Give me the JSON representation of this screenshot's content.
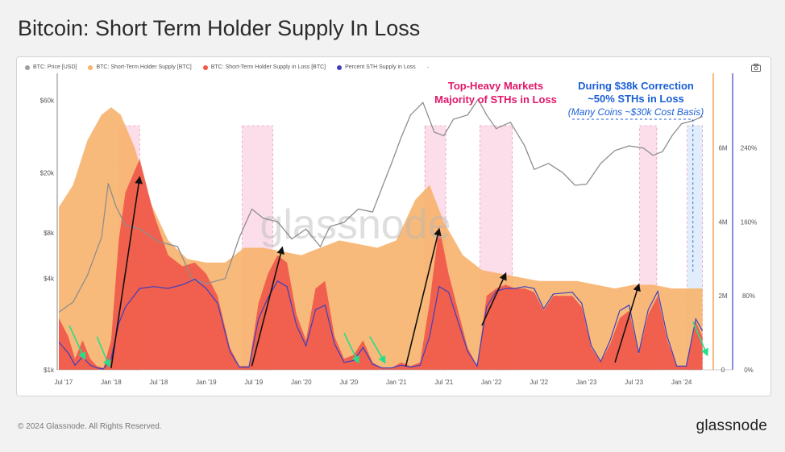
{
  "page": {
    "title": "Bitcoin: Short Term Holder Supply In Loss",
    "footer": "© 2024 Glassnode. All Rights Reserved.",
    "brand": "glassnode",
    "watermark": "glassnode"
  },
  "legend": {
    "items": [
      {
        "label": "BTC: Price [USD]",
        "color": "#9e9e9e"
      },
      {
        "label": "BTC: Short-Term Holder Supply [BTC]",
        "color": "#f7b36b"
      },
      {
        "label": "BTC: Short-Term Holder Supply in Loss [BTC]",
        "color": "#f0584a"
      },
      {
        "label": "Percent STH Supply in Loss",
        "color": "#3f3fbf"
      }
    ],
    "more": "-"
  },
  "annotations": {
    "topheavy_line1": "Top-Heavy Markets",
    "topheavy_line2": "Majority of STHs in Loss",
    "correction_line1": "During $38k Correction",
    "correction_line2": "~50% STHs in Loss",
    "correction_line3": "(Many Coins ~$30k Cost Basis)",
    "colors": {
      "pink": "#e0176a",
      "blue": "#1a5fd6"
    }
  },
  "chart_data": {
    "type": "area",
    "x_ticks": [
      "Jul '17",
      "Jan '18",
      "Jul '18",
      "Jan '19",
      "Jul '19",
      "Jan '20",
      "Jul '20",
      "Jan '21",
      "Jul '21",
      "Jan '22",
      "Jul '22",
      "Jan '23",
      "Jul '23",
      "Jan '24"
    ],
    "price_axis": {
      "scale": "log",
      "ticks": [
        "$1k",
        "$4k",
        "$8k",
        "$20k",
        "$60k"
      ],
      "tick_values": [
        1000,
        4000,
        8000,
        20000,
        60000
      ],
      "range": [
        1000,
        80000
      ]
    },
    "supply_axis": {
      "ticks": [
        "0",
        "2M",
        "4M",
        "6M"
      ],
      "tick_values": [
        0,
        2,
        4,
        6
      ],
      "range": [
        0,
        7.8
      ],
      "unit": "M BTC"
    },
    "percent_axis": {
      "ticks": [
        "0%",
        "80%",
        "160%",
        "240%"
      ],
      "tick_values": [
        0,
        80,
        160,
        240
      ],
      "range": [
        0,
        312
      ]
    },
    "x_range": [
      2017.45,
      2024.3
    ],
    "series": [
      {
        "name": "BTC: Price [USD]",
        "color": "#9e9e9e",
        "x": [
          2017.45,
          2017.6,
          2017.75,
          2017.9,
          2017.97,
          2018.05,
          2018.15,
          2018.3,
          2018.5,
          2018.7,
          2018.85,
          2019.0,
          2019.2,
          2019.35,
          2019.48,
          2019.6,
          2019.75,
          2019.9,
          2020.05,
          2020.2,
          2020.3,
          2020.45,
          2020.6,
          2020.75,
          2020.85,
          2020.95,
          2021.05,
          2021.15,
          2021.28,
          2021.4,
          2021.5,
          2021.6,
          2021.75,
          2021.86,
          2021.95,
          2022.05,
          2022.2,
          2022.35,
          2022.45,
          2022.6,
          2022.75,
          2022.88,
          2023.0,
          2023.15,
          2023.3,
          2023.45,
          2023.6,
          2023.7,
          2023.8,
          2023.9,
          2024.0,
          2024.12,
          2024.22
        ],
        "values": [
          2400,
          2800,
          4200,
          7500,
          17000,
          12000,
          9000,
          8500,
          7000,
          6500,
          4000,
          3700,
          4000,
          7500,
          11500,
          10000,
          9500,
          7300,
          8500,
          6500,
          8800,
          9400,
          11500,
          11000,
          16000,
          23000,
          34000,
          48000,
          58000,
          37000,
          35000,
          45000,
          48000,
          61000,
          48000,
          39000,
          43000,
          30000,
          21000,
          23000,
          20000,
          16500,
          16800,
          23000,
          28000,
          30000,
          29000,
          26000,
          27500,
          35000,
          42000,
          44000,
          47000
        ]
      },
      {
        "name": "BTC: Short-Term Holder Supply [BTC]",
        "color": "#f7b36b",
        "x": [
          2017.45,
          2017.6,
          2017.75,
          2017.9,
          2018.0,
          2018.1,
          2018.25,
          2018.4,
          2018.6,
          2018.8,
          2019.0,
          2019.2,
          2019.4,
          2019.6,
          2019.8,
          2020.0,
          2020.2,
          2020.4,
          2020.6,
          2020.8,
          2021.0,
          2021.2,
          2021.35,
          2021.5,
          2021.7,
          2021.9,
          2022.1,
          2022.3,
          2022.5,
          2022.7,
          2022.9,
          2023.1,
          2023.3,
          2023.5,
          2023.7,
          2023.9,
          2024.1,
          2024.22
        ],
        "values": [
          4.4,
          5.0,
          6.2,
          6.9,
          7.1,
          6.9,
          6.0,
          4.6,
          3.5,
          3.0,
          2.9,
          2.9,
          3.3,
          3.3,
          3.2,
          3.1,
          3.3,
          3.5,
          3.4,
          3.3,
          3.5,
          4.6,
          5.0,
          4.0,
          3.1,
          2.7,
          2.6,
          2.5,
          2.4,
          2.4,
          2.4,
          2.3,
          2.2,
          2.3,
          2.3,
          2.2,
          2.2,
          2.2
        ]
      },
      {
        "name": "BTC: Short-Term Holder Supply in Loss [BTC]",
        "color": "#f0584a",
        "x": [
          2017.45,
          2017.55,
          2017.62,
          2017.7,
          2017.78,
          2017.85,
          2017.92,
          2018.0,
          2018.08,
          2018.15,
          2018.3,
          2018.45,
          2018.6,
          2018.75,
          2018.88,
          2019.0,
          2019.12,
          2019.25,
          2019.35,
          2019.45,
          2019.55,
          2019.65,
          2019.75,
          2019.85,
          2019.95,
          2020.05,
          2020.15,
          2020.25,
          2020.35,
          2020.45,
          2020.55,
          2020.65,
          2020.75,
          2020.85,
          2020.95,
          2021.05,
          2021.15,
          2021.25,
          2021.35,
          2021.45,
          2021.55,
          2021.65,
          2021.75,
          2021.85,
          2021.95,
          2022.05,
          2022.15,
          2022.25,
          2022.35,
          2022.45,
          2022.55,
          2022.65,
          2022.75,
          2022.85,
          2022.95,
          2023.05,
          2023.15,
          2023.25,
          2023.35,
          2023.45,
          2023.55,
          2023.65,
          2023.75,
          2023.85,
          2023.95,
          2024.05,
          2024.15,
          2024.22
        ],
        "values": [
          1.4,
          0.9,
          0.3,
          0.8,
          0.3,
          0.1,
          0.05,
          0.8,
          3.5,
          4.8,
          5.7,
          4.2,
          3.1,
          2.8,
          2.9,
          2.6,
          2.0,
          0.6,
          0.1,
          0.1,
          1.8,
          2.6,
          3.1,
          2.9,
          1.5,
          0.8,
          2.2,
          2.4,
          0.9,
          0.3,
          0.4,
          0.8,
          0.2,
          0.05,
          0.05,
          0.2,
          0.1,
          0.2,
          1.8,
          3.9,
          2.6,
          1.6,
          0.6,
          0.1,
          2.0,
          2.2,
          2.3,
          2.2,
          2.2,
          2.1,
          1.6,
          2.0,
          2.0,
          2.0,
          1.7,
          0.6,
          0.2,
          0.7,
          1.4,
          1.6,
          0.4,
          1.5,
          2.0,
          0.8,
          0.1,
          0.1,
          1.3,
          0.9
        ]
      },
      {
        "name": "Percent STH Supply in Loss",
        "color": "#3f3fbf",
        "x": [
          2017.45,
          2017.55,
          2017.62,
          2017.7,
          2017.78,
          2017.85,
          2017.92,
          2018.0,
          2018.08,
          2018.15,
          2018.3,
          2018.45,
          2018.6,
          2018.75,
          2018.88,
          2019.0,
          2019.12,
          2019.25,
          2019.35,
          2019.45,
          2019.55,
          2019.65,
          2019.75,
          2019.85,
          2019.95,
          2020.05,
          2020.15,
          2020.25,
          2020.35,
          2020.45,
          2020.55,
          2020.65,
          2020.75,
          2020.85,
          2020.95,
          2021.05,
          2021.15,
          2021.25,
          2021.35,
          2021.45,
          2021.55,
          2021.65,
          2021.75,
          2021.85,
          2021.95,
          2022.05,
          2022.15,
          2022.25,
          2022.35,
          2022.45,
          2022.55,
          2022.65,
          2022.75,
          2022.85,
          2022.95,
          2023.05,
          2023.15,
          2023.25,
          2023.35,
          2023.45,
          2023.55,
          2023.65,
          2023.75,
          2023.85,
          2023.95,
          2024.05,
          2024.15,
          2024.22
        ],
        "values": [
          30,
          18,
          5,
          14,
          5,
          2,
          1,
          12,
          50,
          68,
          88,
          90,
          88,
          92,
          98,
          88,
          72,
          20,
          3,
          3,
          55,
          78,
          96,
          90,
          48,
          26,
          65,
          70,
          28,
          8,
          10,
          24,
          6,
          2,
          2,
          5,
          3,
          5,
          36,
          90,
          84,
          52,
          20,
          4,
          68,
          85,
          88,
          88,
          90,
          88,
          66,
          82,
          83,
          84,
          72,
          26,
          9,
          32,
          64,
          70,
          18,
          65,
          85,
          36,
          4,
          4,
          55,
          42
        ]
      }
    ]
  }
}
